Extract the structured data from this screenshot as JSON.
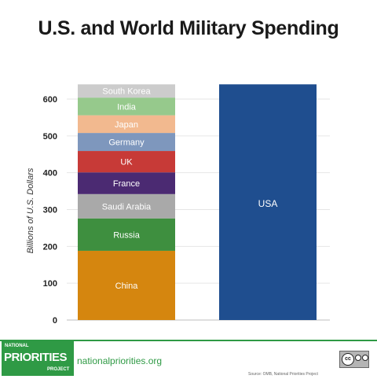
{
  "chart_data": {
    "type": "bar",
    "title": "U.S. and World Military Spending",
    "xlabel": "",
    "ylabel": "Billions of U.S. Dollars",
    "ylim": [
      0,
      650
    ],
    "yticks": [
      0,
      100,
      200,
      300,
      400,
      500,
      600
    ],
    "grid": true,
    "categories": [
      "",
      "USA"
    ],
    "stacked_bar": {
      "segments": [
        {
          "name": "China",
          "value": 188,
          "color": "#d5860f"
        },
        {
          "name": "Russia",
          "value": 88,
          "color": "#3e8f3f"
        },
        {
          "name": "Saudi Arabia",
          "value": 66,
          "color": "#a9a9a9"
        },
        {
          "name": "France",
          "value": 59,
          "color": "#4b2a72"
        },
        {
          "name": "UK",
          "value": 58,
          "color": "#c73a37"
        },
        {
          "name": "Germany",
          "value": 49,
          "color": "#7e97bd"
        },
        {
          "name": "Japan",
          "value": 48,
          "color": "#f2b98f"
        },
        {
          "name": "India",
          "value": 48,
          "color": "#96c98c"
        },
        {
          "name": "South Korea",
          "value": 36,
          "color": "#cccccc"
        }
      ]
    },
    "single_bar": {
      "name": "USA",
      "value": 640,
      "color": "#1f4e8f"
    }
  },
  "footer": {
    "logo_top": "NATIONAL",
    "logo_main": "PRIORITIES",
    "logo_bottom": "PROJECT",
    "url": "nationalpriorities.org",
    "cc_label": "cc",
    "source": "Source: OMB, National Priorities Project"
  }
}
